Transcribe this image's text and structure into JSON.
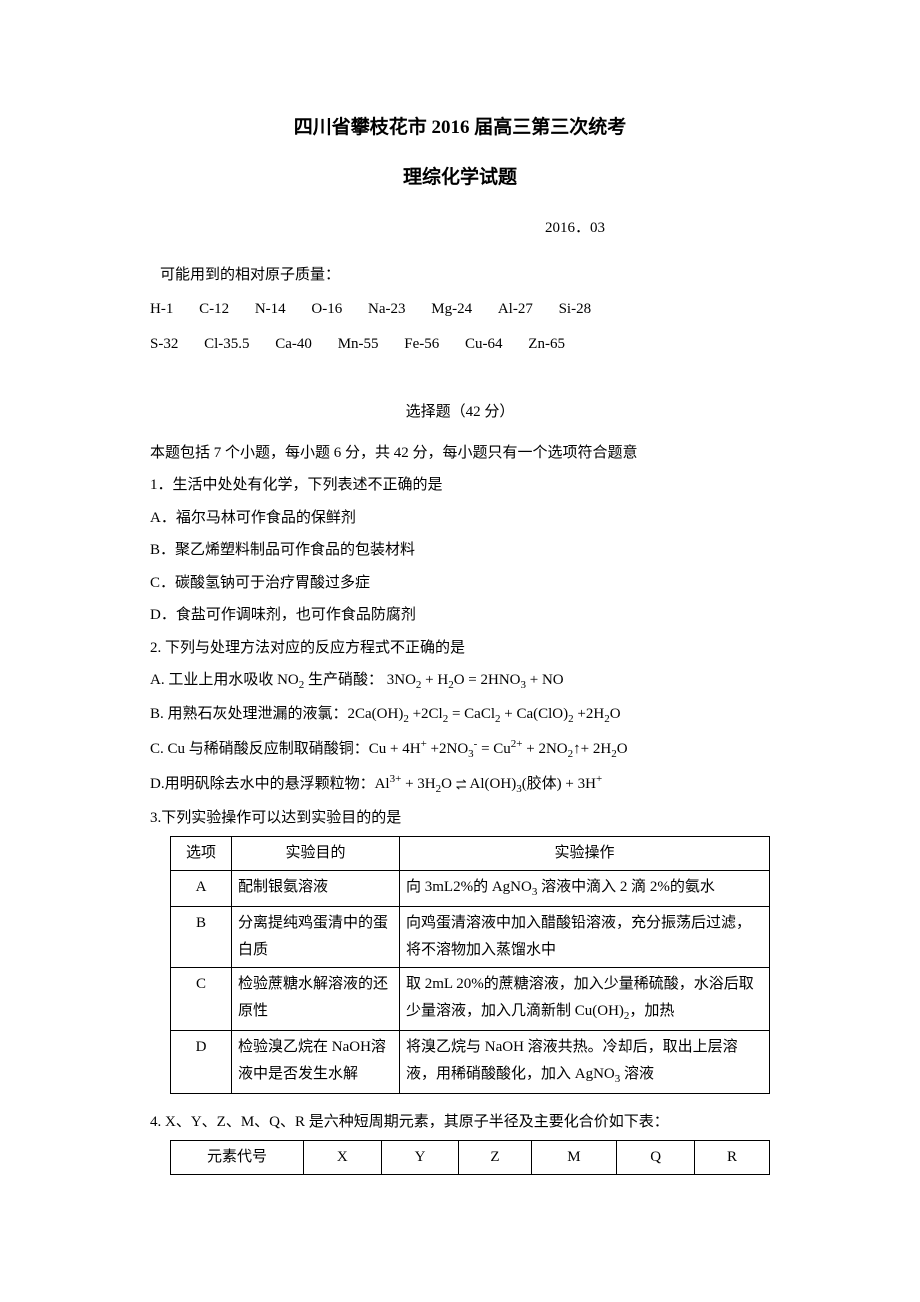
{
  "title": "四川省攀枝花市 2016 届高三第三次统考",
  "subtitle": "理综化学试题",
  "date": "2016．03",
  "atomic_label": "可能用到的相对原子质量：",
  "atomic_row1": [
    "H-1",
    "C-12",
    "N-14",
    "O-16",
    "Na-23",
    "Mg-24",
    "Al-27",
    "Si-28"
  ],
  "atomic_row2": [
    "S-32",
    "Cl-35.5",
    "Ca-40",
    "Mn-55",
    "Fe-56",
    "Cu-64",
    "Zn-65"
  ],
  "section_head": "选择题（42 分）",
  "instructions": "本题包括 7 个小题，每小题 6 分，共 42 分，每小题只有一个选项符合题意",
  "q1": {
    "stem": "1．生活中处处有化学，下列表述不正确的是",
    "a": "A．福尔马林可作食品的保鲜剂",
    "b": "B．聚乙烯塑料制品可作食品的包装材料",
    "c": "C．碳酸氢钠可于治疗胃酸过多症",
    "d": "D．食盐可作调味剂，也可作食品防腐剂"
  },
  "q2": {
    "stem": "2.  下列与处理方法对应的反应方程式不正确的是",
    "a_pre": "A.  工业上用水吸收 NO",
    "a_mid": " 生产硝酸：  3NO",
    "a_post": " + NO",
    "b_pre": "B.  用熟石灰处理泄漏的液氯：2Ca(OH)",
    "c_pre": "C. Cu 与稀硝酸反应制取硝酸铜：Cu + 4H",
    "d_pre": "D.用明矾除去水中的悬浮颗粒物：Al",
    "d_mid": "(胶体) + 3H"
  },
  "q3": {
    "stem": "3.下列实验操作可以达到实验目的的是",
    "head": {
      "c1": "选项",
      "c2": "实验目的",
      "c3": "实验操作"
    },
    "rows": [
      {
        "opt": "A",
        "purpose": "配制银氨溶液",
        "op_pre": "向 3mL2%的 AgNO",
        "op_post": " 溶液中滴入 2 滴 2%的氨水"
      },
      {
        "opt": "B",
        "purpose": "分离提纯鸡蛋清中的蛋白质",
        "op": "向鸡蛋清溶液中加入醋酸铅溶液，充分振荡后过滤，将不溶物加入蒸馏水中"
      },
      {
        "opt": "C",
        "purpose": "检验蔗糖水解溶液的还原性",
        "op_pre": "取 2mL 20%的蔗糖溶液，加入少量稀硫酸，水浴后取少量溶液，加入几滴新制 Cu(OH)",
        "op_post": "，加热"
      },
      {
        "opt": "D",
        "purpose": "检验溴乙烷在 NaOH溶液中是否发生水解",
        "op_pre": "将溴乙烷与 NaOH 溶液共热。冷却后，取出上层溶液，用稀硝酸酸化，加入 AgNO",
        "op_post": " 溶液"
      }
    ]
  },
  "q4": {
    "stem": "4. X、Y、Z、M、Q、R 是六种短周期元素，其原子半径及主要化合价如下表：",
    "head": {
      "label": "元素代号",
      "c": [
        "X",
        "Y",
        "Z",
        "M",
        "Q",
        "R"
      ]
    }
  }
}
